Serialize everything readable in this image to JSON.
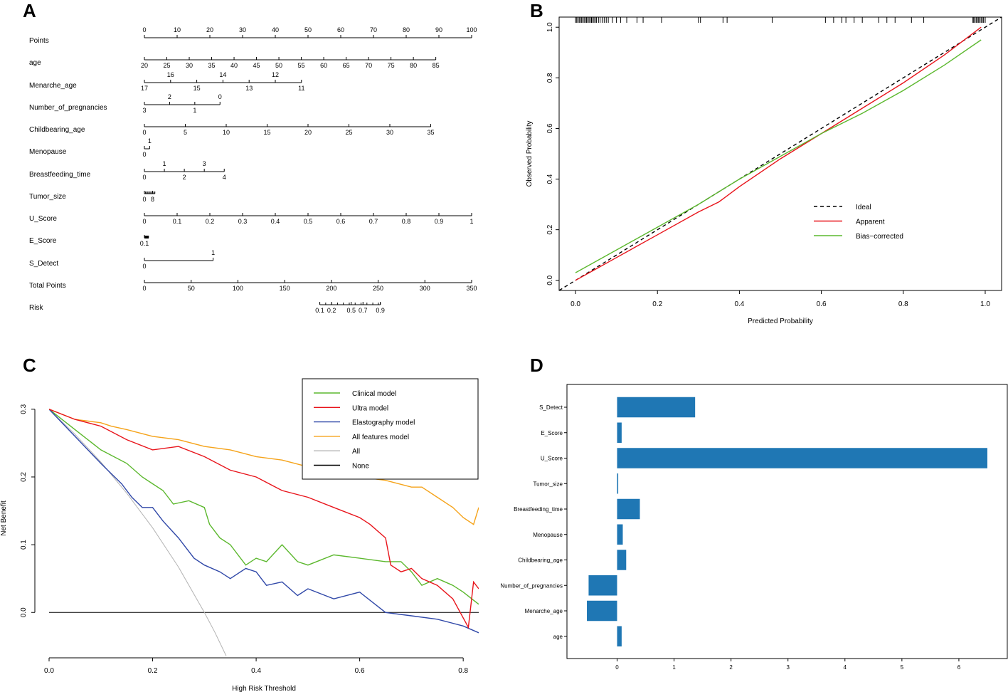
{
  "panel_labels": {
    "A": "A",
    "B": "B",
    "C": "C",
    "D": "D"
  },
  "colors": {
    "green": "#5cb82e",
    "red": "#e8141b",
    "blue": "#3048a8",
    "orange": "#f5a31a",
    "gray": "#b4b4b4",
    "black": "#000000",
    "bar": "#1f77b4"
  },
  "chart_data": [
    {
      "type": "nomogram",
      "panel": "A",
      "rows": [
        {
          "label": "Points",
          "ticks": [
            {
              "v": 0,
              "t": "0"
            },
            {
              "v": 10,
              "t": "10"
            },
            {
              "v": 20,
              "t": "20"
            },
            {
              "v": 30,
              "t": "30"
            },
            {
              "v": 40,
              "t": "40"
            },
            {
              "v": 50,
              "t": "50"
            },
            {
              "v": 60,
              "t": "60"
            },
            {
              "v": 70,
              "t": "70"
            },
            {
              "v": 80,
              "t": "80"
            },
            {
              "v": 90,
              "t": "90"
            },
            {
              "v": 100,
              "t": "100"
            }
          ]
        },
        {
          "label": "age",
          "ticks": [
            {
              "v": 0,
              "t": "20"
            },
            {
              "v": 6.85,
              "t": "25"
            },
            {
              "v": 13.7,
              "t": "30"
            },
            {
              "v": 20.55,
              "t": "35"
            },
            {
              "v": 27.4,
              "t": "40"
            },
            {
              "v": 34.25,
              "t": "45"
            },
            {
              "v": 41.1,
              "t": "50"
            },
            {
              "v": 47.95,
              "t": "55"
            },
            {
              "v": 54.8,
              "t": "60"
            },
            {
              "v": 61.65,
              "t": "65"
            },
            {
              "v": 68.5,
              "t": "70"
            },
            {
              "v": 75.35,
              "t": "75"
            },
            {
              "v": 82.2,
              "t": "80"
            },
            {
              "v": 89.05,
              "t": "85"
            }
          ]
        },
        {
          "label": "Menarche_age",
          "ticks": [
            {
              "v": 0,
              "t": "17",
              "pos": "below"
            },
            {
              "v": 8,
              "t": "16",
              "pos": "above"
            },
            {
              "v": 16,
              "t": "15",
              "pos": "below"
            },
            {
              "v": 24,
              "t": "14",
              "pos": "above"
            },
            {
              "v": 32,
              "t": "13",
              "pos": "below"
            },
            {
              "v": 40,
              "t": "12",
              "pos": "above"
            },
            {
              "v": 48,
              "t": "11",
              "pos": "below"
            }
          ]
        },
        {
          "label": "Number_of_pregnancies",
          "ticks": [
            {
              "v": 0,
              "t": "3",
              "pos": "below"
            },
            {
              "v": 7.7,
              "t": "2",
              "pos": "above"
            },
            {
              "v": 15.4,
              "t": "1",
              "pos": "below"
            },
            {
              "v": 23.1,
              "t": "0",
              "pos": "above"
            }
          ]
        },
        {
          "label": "Childbearing_age",
          "ticks": [
            {
              "v": 0,
              "t": "0"
            },
            {
              "v": 12.5,
              "t": "5"
            },
            {
              "v": 25,
              "t": "10"
            },
            {
              "v": 37.5,
              "t": "15"
            },
            {
              "v": 50,
              "t": "20"
            },
            {
              "v": 62.5,
              "t": "25"
            },
            {
              "v": 75,
              "t": "30"
            },
            {
              "v": 87.5,
              "t": "35"
            }
          ]
        },
        {
          "label": "Menopause",
          "ticks": [
            {
              "v": 0,
              "t": "0",
              "pos": "below"
            },
            {
              "v": 1.6,
              "t": "1",
              "pos": "above"
            }
          ]
        },
        {
          "label": "Breastfeeding_time",
          "ticks": [
            {
              "v": 0,
              "t": "0",
              "pos": "below"
            },
            {
              "v": 6.1,
              "t": "1",
              "pos": "above"
            },
            {
              "v": 12.2,
              "t": "2",
              "pos": "below"
            },
            {
              "v": 18.3,
              "t": "3",
              "pos": "above"
            },
            {
              "v": 24.4,
              "t": "4",
              "pos": "below"
            }
          ]
        },
        {
          "label": "Tumor_size",
          "ticks": [
            {
              "v": 0,
              "t": "0"
            },
            {
              "v": 2.5,
              "t": "8"
            }
          ],
          "minor": [
            0.35,
            0.7,
            1.05,
            1.4,
            1.75,
            2.1,
            2.5,
            2.85,
            3.2
          ]
        },
        {
          "label": "U_Score",
          "ticks": [
            {
              "v": 0,
              "t": "0"
            },
            {
              "v": 10,
              "t": "0.1"
            },
            {
              "v": 20,
              "t": "0.2"
            },
            {
              "v": 30,
              "t": "0.3"
            },
            {
              "v": 40,
              "t": "0.4"
            },
            {
              "v": 50,
              "t": "0.5"
            },
            {
              "v": 60,
              "t": "0.6"
            },
            {
              "v": 70,
              "t": "0.7"
            },
            {
              "v": 80,
              "t": "0.8"
            },
            {
              "v": 90,
              "t": "0.9"
            },
            {
              "v": 100,
              "t": "1"
            }
          ]
        },
        {
          "label": "E_Score",
          "ticks": [
            {
              "v": 0,
              "t": "0.1"
            }
          ],
          "minor": [
            0,
            0.25,
            0.5,
            0.75,
            1.0,
            1.25
          ]
        },
        {
          "label": "S_Detect",
          "ticks": [
            {
              "v": 0,
              "t": "0",
              "pos": "below"
            },
            {
              "v": 21,
              "t": "1",
              "pos": "above"
            }
          ]
        },
        {
          "label": "Total Points",
          "ticks": [
            {
              "v": 0,
              "t": "0"
            },
            {
              "v": 14.29,
              "t": "50"
            },
            {
              "v": 28.57,
              "t": "100"
            },
            {
              "v": 42.86,
              "t": "150"
            },
            {
              "v": 57.14,
              "t": "200"
            },
            {
              "v": 71.43,
              "t": "250"
            },
            {
              "v": 85.71,
              "t": "300"
            },
            {
              "v": 100,
              "t": "350"
            }
          ]
        },
        {
          "label": "Risk",
          "ticks": [
            {
              "v": 53.6,
              "t": "0.1"
            },
            {
              "v": 57.2,
              "t": "0.2"
            },
            {
              "v": 63.2,
              "t": "0.5"
            },
            {
              "v": 66.8,
              "t": "0.7"
            },
            {
              "v": 72.1,
              "t": "0.9"
            }
          ],
          "minor": [
            53.6,
            55.4,
            57.2,
            59.0,
            60.8,
            62.6,
            64.4,
            66.2,
            68.0,
            69.8,
            71.5,
            72.1
          ]
        }
      ]
    },
    {
      "type": "line",
      "panel": "B",
      "xlabel": "Predicted Probability",
      "ylabel": "Observed Probability",
      "xlim": [
        -0.04,
        1.04
      ],
      "ylim": [
        -0.04,
        1.04
      ],
      "xticks": [
        0.0,
        0.2,
        0.4,
        0.6,
        0.8,
        1.0
      ],
      "yticks": [
        0.0,
        0.2,
        0.4,
        0.6,
        0.8,
        1.0
      ],
      "xtick_labels": [
        "0.0",
        "0.2",
        "0.4",
        "0.6",
        "0.8",
        "1.0"
      ],
      "ytick_labels": [
        "0.0",
        "0.2",
        "0.4",
        "0.6",
        "0.8",
        "1.0"
      ],
      "legend": [
        "Ideal",
        "Apparent",
        "Bias−corrected"
      ],
      "series": [
        {
          "name": "Ideal",
          "style": "dashed",
          "color": "black",
          "x": [
            -0.04,
            1.04
          ],
          "y": [
            -0.04,
            1.04
          ]
        },
        {
          "name": "Apparent",
          "color": "red",
          "x": [
            0,
            0.1,
            0.2,
            0.3,
            0.35,
            0.4,
            0.5,
            0.6,
            0.7,
            0.8,
            0.9,
            0.99
          ],
          "y": [
            0.0,
            0.09,
            0.18,
            0.27,
            0.31,
            0.37,
            0.48,
            0.58,
            0.68,
            0.78,
            0.89,
            1.0
          ]
        },
        {
          "name": "Bias−corrected",
          "color": "green",
          "x": [
            0,
            0.1,
            0.2,
            0.3,
            0.35,
            0.4,
            0.5,
            0.6,
            0.7,
            0.8,
            0.9,
            0.99
          ],
          "y": [
            0.03,
            0.12,
            0.21,
            0.3,
            0.35,
            0.4,
            0.49,
            0.58,
            0.66,
            0.75,
            0.85,
            0.95
          ]
        }
      ],
      "rug": [
        0.0,
        0.003,
        0.006,
        0.009,
        0.012,
        0.015,
        0.018,
        0.021,
        0.024,
        0.027,
        0.03,
        0.033,
        0.036,
        0.039,
        0.042,
        0.045,
        0.048,
        0.051,
        0.056,
        0.06,
        0.065,
        0.07,
        0.075,
        0.08,
        0.09,
        0.1,
        0.11,
        0.125,
        0.15,
        0.165,
        0.21,
        0.3,
        0.305,
        0.36,
        0.37,
        0.48,
        0.61,
        0.63,
        0.65,
        0.66,
        0.68,
        0.7,
        0.74,
        0.76,
        0.78,
        0.82,
        0.85,
        0.97,
        0.972,
        0.975,
        0.978,
        0.981,
        0.984,
        0.987,
        0.99,
        0.993,
        0.996,
        1.0
      ]
    },
    {
      "type": "line",
      "panel": "C",
      "xlabel": "High Risk Threshold",
      "ylabel": "Net Benefit",
      "xlim": [
        0,
        0.83
      ],
      "ylim": [
        -0.067,
        0.345
      ],
      "xticks": [
        0.0,
        0.2,
        0.4,
        0.6,
        0.8
      ],
      "yticks": [
        0.0,
        0.1,
        0.2,
        0.3
      ],
      "xtick_labels": [
        "0.0",
        "0.2",
        "0.4",
        "0.6",
        "0.8"
      ],
      "ytick_labels": [
        "0.0",
        "0.1",
        "0.2",
        "0.3"
      ],
      "legend": [
        "Clinical model",
        "Ultra model",
        "Elastography model",
        "All features model",
        "All",
        "None"
      ],
      "series": [
        {
          "name": "Clinical model",
          "color": "green",
          "x": [
            0.0,
            0.05,
            0.1,
            0.15,
            0.18,
            0.2,
            0.22,
            0.24,
            0.27,
            0.3,
            0.31,
            0.33,
            0.35,
            0.38,
            0.4,
            0.42,
            0.45,
            0.48,
            0.5,
            0.55,
            0.6,
            0.65,
            0.68,
            0.7,
            0.72,
            0.75,
            0.78,
            0.8,
            0.83
          ],
          "y": [
            0.3,
            0.27,
            0.24,
            0.22,
            0.2,
            0.19,
            0.18,
            0.16,
            0.165,
            0.155,
            0.13,
            0.11,
            0.1,
            0.07,
            0.08,
            0.075,
            0.1,
            0.075,
            0.07,
            0.085,
            0.08,
            0.075,
            0.075,
            0.06,
            0.04,
            0.05,
            0.04,
            0.03,
            0.012
          ]
        },
        {
          "name": "Ultra model",
          "color": "red",
          "x": [
            0.0,
            0.05,
            0.1,
            0.15,
            0.2,
            0.25,
            0.3,
            0.35,
            0.4,
            0.45,
            0.5,
            0.55,
            0.6,
            0.62,
            0.65,
            0.66,
            0.68,
            0.7,
            0.72,
            0.75,
            0.78,
            0.81,
            0.82,
            0.83
          ],
          "y": [
            0.3,
            0.285,
            0.275,
            0.255,
            0.24,
            0.245,
            0.23,
            0.21,
            0.2,
            0.18,
            0.17,
            0.155,
            0.14,
            0.13,
            0.11,
            0.07,
            0.06,
            0.065,
            0.05,
            0.04,
            0.02,
            -0.022,
            0.045,
            0.035
          ]
        },
        {
          "name": "Elastography model",
          "color": "blue",
          "x": [
            0.0,
            0.05,
            0.1,
            0.12,
            0.14,
            0.16,
            0.18,
            0.2,
            0.22,
            0.25,
            0.28,
            0.3,
            0.33,
            0.35,
            0.38,
            0.4,
            0.42,
            0.45,
            0.48,
            0.5,
            0.55,
            0.6,
            0.65,
            0.7,
            0.75,
            0.8,
            0.83
          ],
          "y": [
            0.3,
            0.26,
            0.22,
            0.205,
            0.19,
            0.17,
            0.155,
            0.155,
            0.135,
            0.11,
            0.08,
            0.07,
            0.06,
            0.05,
            0.065,
            0.06,
            0.04,
            0.045,
            0.025,
            0.035,
            0.02,
            0.03,
            0.0,
            -0.005,
            -0.01,
            -0.02,
            -0.03
          ]
        },
        {
          "name": "All features model",
          "color": "orange",
          "x": [
            0.0,
            0.05,
            0.1,
            0.12,
            0.15,
            0.2,
            0.25,
            0.3,
            0.35,
            0.4,
            0.45,
            0.5,
            0.55,
            0.6,
            0.65,
            0.7,
            0.72,
            0.75,
            0.78,
            0.8,
            0.82,
            0.83
          ],
          "y": [
            0.3,
            0.285,
            0.28,
            0.275,
            0.27,
            0.26,
            0.255,
            0.245,
            0.24,
            0.23,
            0.225,
            0.215,
            0.205,
            0.2,
            0.195,
            0.185,
            0.185,
            0.17,
            0.155,
            0.14,
            0.13,
            0.155
          ]
        },
        {
          "name": "All",
          "color": "gray",
          "x": [
            0.0,
            0.05,
            0.1,
            0.15,
            0.2,
            0.25,
            0.3,
            0.32,
            0.342
          ],
          "y": [
            0.3,
            0.263,
            0.222,
            0.176,
            0.125,
            0.067,
            0.0,
            -0.029,
            -0.064
          ]
        },
        {
          "name": "None",
          "color": "black",
          "x": [
            0,
            0.83
          ],
          "y": [
            0,
            0
          ]
        }
      ]
    },
    {
      "type": "bar",
      "panel": "D",
      "orientation": "horizontal",
      "categories": [
        "S_Detect",
        "E_Score",
        "U_Score",
        "Tumor_size",
        "Breastfeeding_time",
        "Menopause",
        "Childbearing_age",
        "Number_of_pregnancies",
        "Menarche_age",
        "age"
      ],
      "values": [
        1.37,
        0.08,
        6.5,
        0.02,
        0.4,
        0.1,
        0.16,
        -0.5,
        -0.53,
        0.08
      ],
      "xlim": [
        -0.88,
        6.85
      ],
      "xticks": [
        0,
        1,
        2,
        3,
        4,
        5,
        6
      ],
      "xtick_labels": [
        "0",
        "1",
        "2",
        "3",
        "4",
        "5",
        "6"
      ]
    }
  ]
}
